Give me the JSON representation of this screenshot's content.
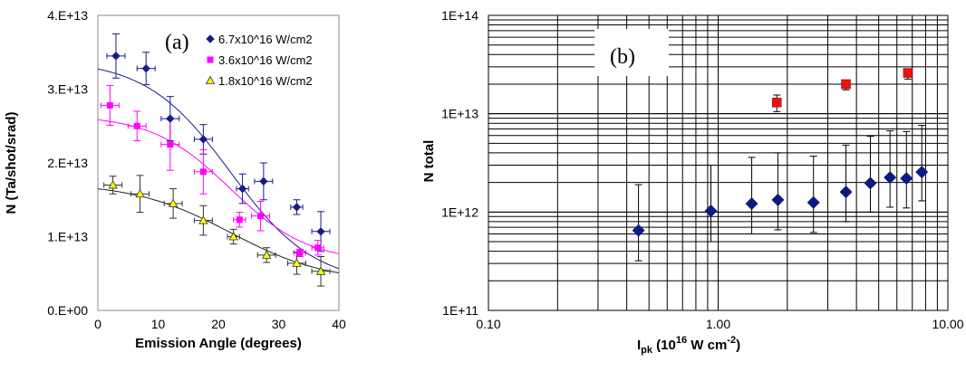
{
  "chart_data": [
    {
      "panel": "(a)",
      "type": "scatter",
      "xlabel": "Emission Angle (degrees)",
      "ylabel": "N (Ta/shot/srad)",
      "xlim": [
        0,
        40
      ],
      "ylim": [
        0,
        40000000000000.0
      ],
      "x_ticks": [
        "0",
        "10",
        "20",
        "30",
        "40"
      ],
      "y_ticks": [
        "0.E+00",
        "1.E+13",
        "2.E+13",
        "3.E+13",
        "4.E+13"
      ],
      "legend_position": "top-right",
      "series": [
        {
          "name": "6.7x10^16 W/cm2",
          "color": "#1a1a8c",
          "marker": "diamond",
          "fit": {
            "base": 3500000000000.0,
            "amp": 30500000000000.0,
            "center": 22,
            "width": 7
          },
          "points": [
            {
              "x": 3,
              "y": 34500000000000.0,
              "xerr": 1.5,
              "yerr": 3000000000000.0
            },
            {
              "x": 8,
              "y": 32800000000000.0,
              "xerr": 1.5,
              "yerr": 2200000000000.0
            },
            {
              "x": 12,
              "y": 26000000000000.0,
              "xerr": 1.5,
              "yerr": 3000000000000.0
            },
            {
              "x": 17.5,
              "y": 23200000000000.0,
              "xerr": 1.5,
              "yerr": 2000000000000.0
            },
            {
              "x": 24,
              "y": 16500000000000.0,
              "xerr": 1.0,
              "yerr": 2000000000000.0
            },
            {
              "x": 27.5,
              "y": 17500000000000.0,
              "xerr": 1.5,
              "yerr": 2500000000000.0
            },
            {
              "x": 33,
              "y": 14000000000000.0,
              "xerr": 1.0,
              "yerr": 1000000000000.0
            },
            {
              "x": 37,
              "y": 10700000000000.0,
              "xerr": 1.5,
              "yerr": 2700000000000.0
            }
          ]
        },
        {
          "name": "3.6x10^16 W/cm2",
          "color": "#ff00ff",
          "marker": "square",
          "fit": {
            "base": 6500000000000.0,
            "amp": 20000000000000.0,
            "center": 22,
            "width": 6.5
          },
          "points": [
            {
              "x": 2,
              "y": 27800000000000.0,
              "xerr": 1.5,
              "yerr": 2700000000000.0
            },
            {
              "x": 6.5,
              "y": 25000000000000.0,
              "xerr": 1.5,
              "yerr": 2000000000000.0
            },
            {
              "x": 12,
              "y": 22500000000000.0,
              "xerr": 1.5,
              "yerr": 3500000000000.0
            },
            {
              "x": 17.5,
              "y": 18800000000000.0,
              "xerr": 1.5,
              "yerr": 3000000000000.0
            },
            {
              "x": 23.5,
              "y": 12300000000000.0,
              "xerr": 1.0,
              "yerr": 1000000000000.0
            },
            {
              "x": 27,
              "y": 12800000000000.0,
              "xerr": 1.5,
              "yerr": 2000000000000.0
            },
            {
              "x": 33.5,
              "y": 7800000000000.0,
              "xerr": 1.0,
              "yerr": 500000000000.0
            },
            {
              "x": 36.5,
              "y": 8500000000000.0,
              "xerr": 1.0,
              "yerr": 1000000000000.0
            }
          ]
        },
        {
          "name": "1.8x10^16 W/cm2",
          "color": "#ffff00",
          "marker": "triangle",
          "fit": {
            "base": 3800000000000.0,
            "amp": 13500000000000.0,
            "center": 22,
            "width": 8
          },
          "points": [
            {
              "x": 2.5,
              "y": 17000000000000.0,
              "xerr": 1.5,
              "yerr": 1200000000000.0
            },
            {
              "x": 7,
              "y": 15800000000000.0,
              "xerr": 1.5,
              "yerr": 2500000000000.0
            },
            {
              "x": 12.5,
              "y": 14500000000000.0,
              "xerr": 1.5,
              "yerr": 2000000000000.0
            },
            {
              "x": 17.5,
              "y": 12200000000000.0,
              "xerr": 1.5,
              "yerr": 2000000000000.0
            },
            {
              "x": 22.5,
              "y": 10000000000000.0,
              "xerr": 1.0,
              "yerr": 1000000000000.0
            },
            {
              "x": 28,
              "y": 7500000000000.0,
              "xerr": 1.5,
              "yerr": 1000000000000.0
            },
            {
              "x": 33,
              "y": 6400000000000.0,
              "xerr": 1.5,
              "yerr": 1500000000000.0
            },
            {
              "x": 37,
              "y": 5300000000000.0,
              "xerr": 1.5,
              "yerr": 2000000000000.0
            }
          ]
        }
      ]
    },
    {
      "panel": "(b)",
      "type": "scatter",
      "xlabel_main": "I",
      "xlabel_sub": "pk",
      "xlabel_rest": " (10",
      "xlabel_sup": "16",
      "xlabel_rest2": " W cm",
      "xlabel_sup2": "-2",
      "xlabel_end": ")",
      "ylabel": "N total",
      "xscale": "log",
      "yscale": "log",
      "xlim": [
        0.1,
        10
      ],
      "ylim": [
        100000000000.0,
        100000000000000.0
      ],
      "x_ticks": [
        "0.10",
        "1.00",
        "10.00"
      ],
      "y_ticks": [
        "1E+11",
        "1E+12",
        "1E+13",
        "1E+14"
      ],
      "grid": true,
      "series": [
        {
          "color": "#0d1a80",
          "marker": "diamond",
          "points": [
            {
              "x": 0.45,
              "y": 650000000000.0,
              "ylo": 320000000000.0,
              "yhi": 1900000000000.0
            },
            {
              "x": 0.93,
              "y": 1030000000000.0,
              "ylo": 500000000000.0,
              "yhi": 3000000000000.0
            },
            {
              "x": 1.4,
              "y": 1220000000000.0,
              "ylo": 600000000000.0,
              "yhi": 3600000000000.0
            },
            {
              "x": 1.82,
              "y": 1330000000000.0,
              "ylo": 660000000000.0,
              "yhi": 4000000000000.0
            },
            {
              "x": 2.6,
              "y": 1250000000000.0,
              "ylo": 620000000000.0,
              "yhi": 3700000000000.0
            },
            {
              "x": 3.6,
              "y": 1600000000000.0,
              "ylo": 800000000000.0,
              "yhi": 4800000000000.0
            },
            {
              "x": 4.6,
              "y": 1970000000000.0,
              "ylo": 1000000000000.0,
              "yhi": 5900000000000.0
            },
            {
              "x": 5.6,
              "y": 2250000000000.0,
              "ylo": 1120000000000.0,
              "yhi": 6700000000000.0
            },
            {
              "x": 6.6,
              "y": 2200000000000.0,
              "ylo": 1100000000000.0,
              "yhi": 6600000000000.0
            },
            {
              "x": 7.7,
              "y": 2550000000000.0,
              "ylo": 1300000000000.0,
              "yhi": 7600000000000.0
            }
          ]
        },
        {
          "color": "#ee1111",
          "marker": "square",
          "points": [
            {
              "x": 1.8,
              "y": 13000000000000.0,
              "ylo": 10500000000000.0,
              "yhi": 15500000000000.0
            },
            {
              "x": 3.6,
              "y": 20000000000000.0,
              "ylo": 17500000000000.0,
              "yhi": 22000000000000.0
            },
            {
              "x": 6.7,
              "y": 26000000000000.0,
              "ylo": 22500000000000.0,
              "yhi": 28500000000000.0
            }
          ]
        }
      ]
    }
  ]
}
